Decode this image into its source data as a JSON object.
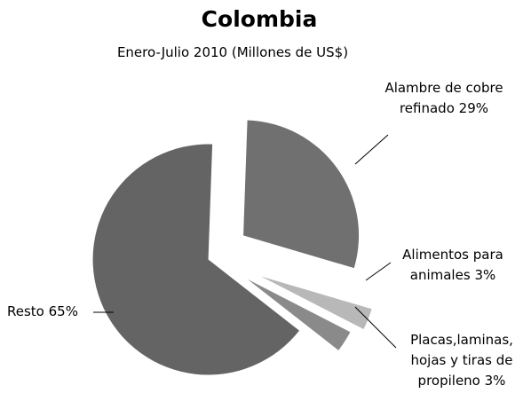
{
  "chart_data": {
    "type": "pie",
    "title": "Colombia",
    "subtitle": "Enero-Julio 2010 (Millones de US$)",
    "categories": [
      "Alambre de cobre refinado",
      "Alimentos para animales",
      "Placas,laminas, hojas y tiras de propileno",
      "Resto"
    ],
    "values": [
      29,
      3,
      3,
      65
    ],
    "value_labels": [
      "29%",
      "3%",
      "3%",
      "65%"
    ],
    "colors": [
      "#707070",
      "#b8b8b8",
      "#8a8a8a",
      "#646464"
    ]
  }
}
